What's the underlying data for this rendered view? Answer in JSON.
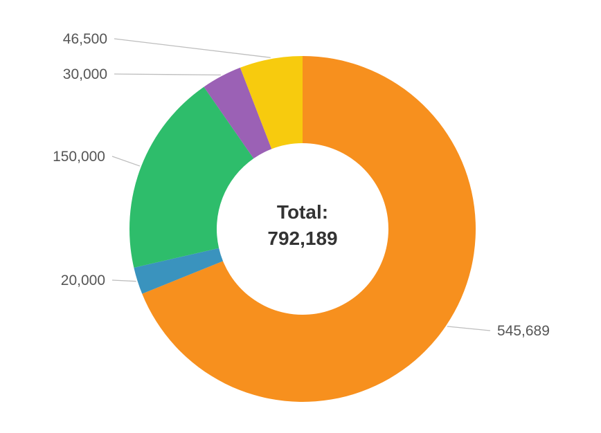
{
  "chart_data": {
    "type": "pie",
    "donut": true,
    "title": "",
    "center_text": {
      "line1": "Total:",
      "line2": "792,189"
    },
    "slices": [
      {
        "value": 545689,
        "label": "545,689",
        "color": "#f7901e"
      },
      {
        "value": 20000,
        "label": "20,000",
        "color": "#3a93be"
      },
      {
        "value": 150000,
        "label": "150,000",
        "color": "#2ebd6b"
      },
      {
        "value": 30000,
        "label": "30,000",
        "color": "#9b61b5"
      },
      {
        "value": 46500,
        "label": "46,500",
        "color": "#f7cb0e"
      }
    ],
    "start_angle": "top",
    "direction": "clockwise",
    "legend": "none"
  }
}
